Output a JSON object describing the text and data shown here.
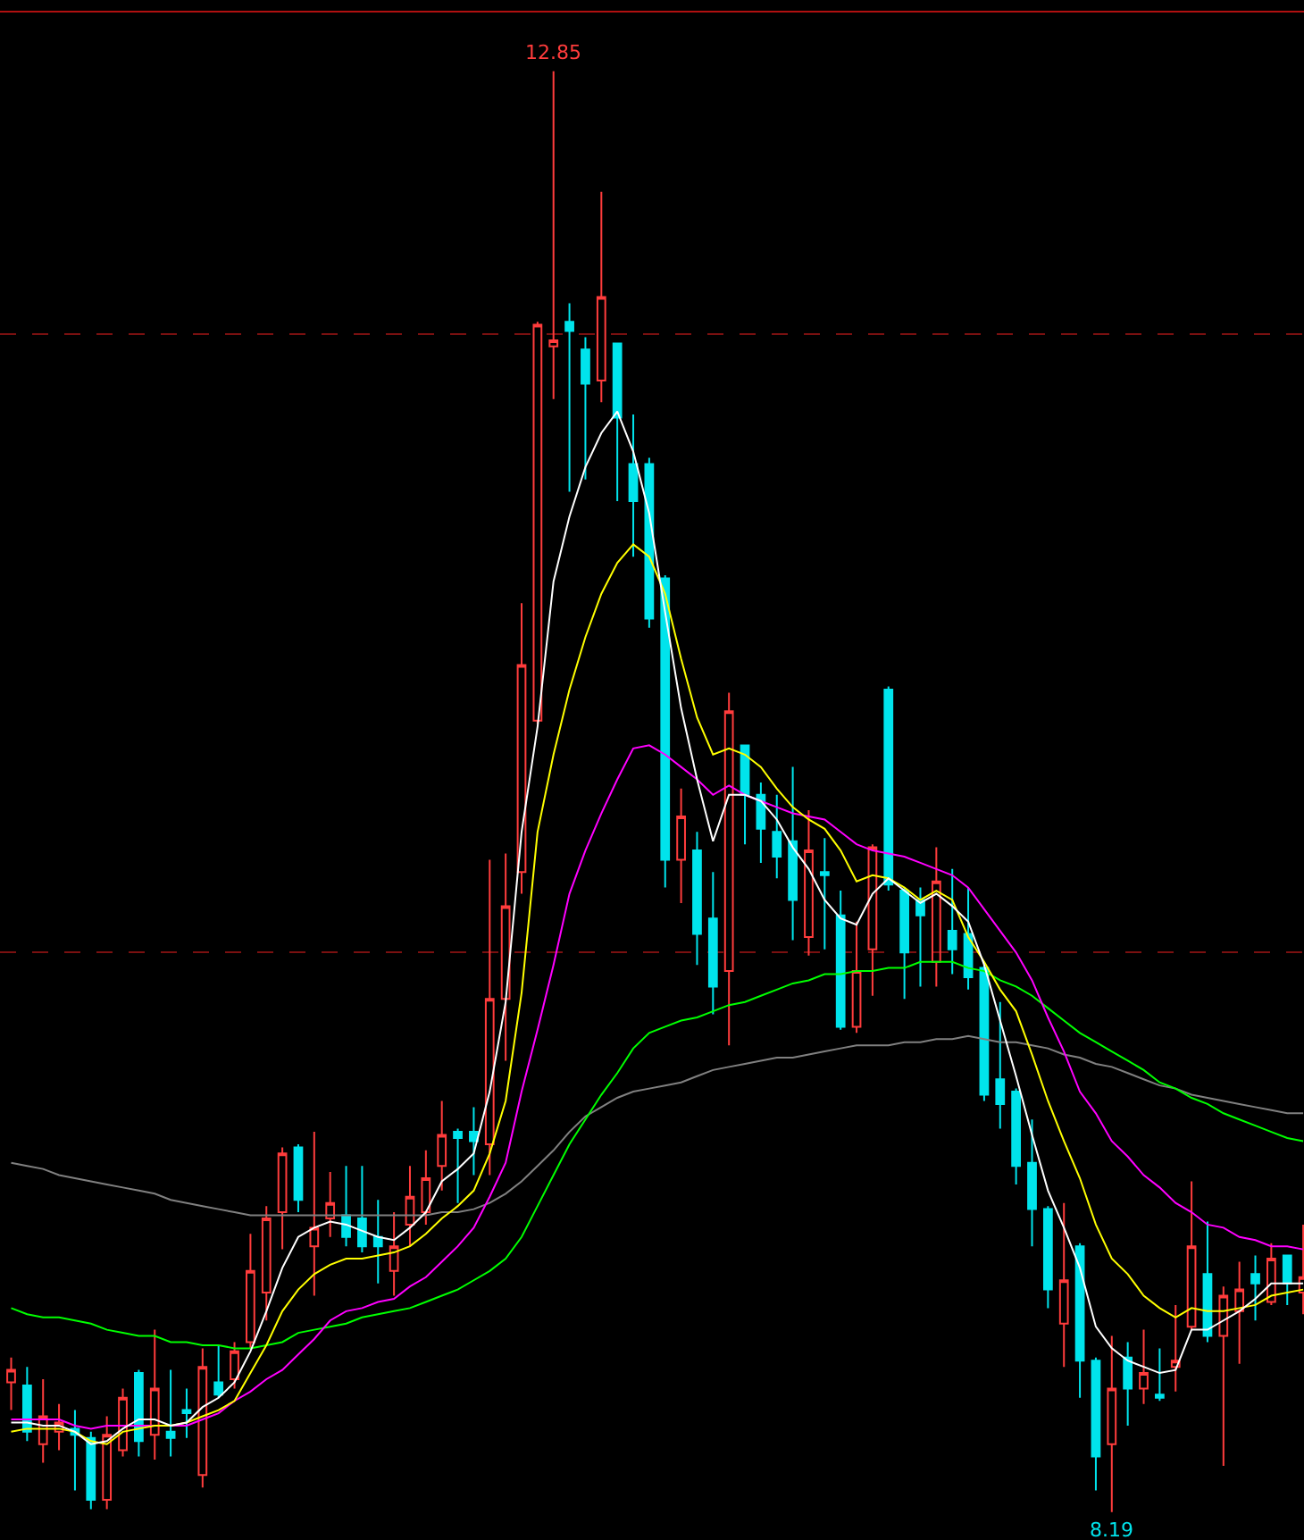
{
  "chart_data": {
    "type": "candlestick",
    "categories": [
      null,
      null,
      null,
      null,
      null,
      null,
      null,
      null,
      null,
      null,
      null,
      null,
      null,
      null,
      null,
      null,
      null,
      null,
      null,
      null,
      null,
      null,
      null,
      null,
      null,
      null,
      null,
      null,
      null,
      null,
      null,
      null,
      null,
      null,
      null,
      null,
      null,
      null,
      null,
      null,
      null,
      null,
      null,
      null,
      null,
      null,
      null,
      null,
      null,
      null,
      null,
      null,
      null,
      null,
      null,
      null,
      null,
      null,
      null,
      null,
      null,
      null,
      null,
      null,
      null,
      null,
      null,
      null,
      null,
      null,
      null,
      null,
      null,
      null,
      null,
      null,
      null,
      null,
      null,
      null,
      null,
      null
    ],
    "ohlc": [
      [
        8.61,
        8.69,
        8.52,
        8.65
      ],
      [
        8.6,
        8.66,
        8.42,
        8.45
      ],
      [
        8.41,
        8.62,
        8.35,
        8.5
      ],
      [
        8.45,
        8.54,
        8.39,
        8.48
      ],
      [
        8.46,
        8.52,
        8.26,
        8.44
      ],
      [
        8.43,
        8.45,
        8.2,
        8.23
      ],
      [
        8.23,
        8.5,
        8.2,
        8.44
      ],
      [
        8.39,
        8.59,
        8.37,
        8.56
      ],
      [
        8.64,
        8.65,
        8.37,
        8.42
      ],
      [
        8.44,
        8.78,
        8.36,
        8.59
      ],
      [
        8.45,
        8.65,
        8.37,
        8.43
      ],
      [
        8.52,
        8.59,
        8.43,
        8.51
      ],
      [
        8.31,
        8.72,
        8.27,
        8.66
      ],
      [
        8.61,
        8.73,
        8.56,
        8.57
      ],
      [
        8.62,
        8.74,
        8.59,
        8.71
      ],
      [
        8.74,
        9.09,
        8.72,
        8.97
      ],
      [
        8.9,
        9.18,
        8.81,
        9.14
      ],
      [
        9.16,
        9.37,
        9.04,
        9.35
      ],
      [
        9.37,
        9.38,
        9.16,
        9.2
      ],
      [
        9.05,
        9.42,
        8.89,
        9.11
      ],
      [
        9.14,
        9.29,
        9.08,
        9.19
      ],
      [
        9.15,
        9.31,
        9.05,
        9.08
      ],
      [
        9.14,
        9.31,
        9.03,
        9.05
      ],
      [
        9.08,
        9.2,
        8.93,
        9.05
      ],
      [
        8.97,
        9.16,
        8.89,
        9.05
      ],
      [
        9.12,
        9.31,
        9.05,
        9.21
      ],
      [
        9.16,
        9.36,
        9.12,
        9.27
      ],
      [
        9.31,
        9.52,
        9.23,
        9.41
      ],
      [
        9.42,
        9.43,
        9.19,
        9.4
      ],
      [
        9.42,
        9.5,
        9.28,
        9.39
      ],
      [
        9.38,
        10.3,
        9.28,
        9.85
      ],
      [
        9.85,
        10.32,
        9.65,
        10.15
      ],
      [
        10.26,
        11.13,
        10.19,
        10.93
      ],
      [
        10.75,
        12.04,
        10.74,
        12.03
      ],
      [
        11.96,
        12.85,
        11.79,
        11.98
      ],
      [
        12.04,
        12.1,
        11.49,
        12.01
      ],
      [
        11.95,
        11.99,
        11.53,
        11.84
      ],
      [
        11.85,
        12.46,
        11.78,
        12.12
      ],
      [
        11.97,
        11.97,
        11.46,
        11.73
      ],
      [
        11.58,
        11.74,
        11.28,
        11.46
      ],
      [
        11.58,
        11.6,
        11.05,
        11.08
      ],
      [
        11.21,
        11.22,
        10.21,
        10.3
      ],
      [
        10.3,
        10.53,
        10.16,
        10.44
      ],
      [
        10.33,
        10.39,
        9.96,
        10.06
      ],
      [
        10.11,
        10.26,
        9.8,
        9.89
      ],
      [
        9.94,
        10.84,
        9.7,
        10.78
      ],
      [
        10.67,
        10.67,
        10.35,
        10.51
      ],
      [
        10.51,
        10.55,
        10.29,
        10.4
      ],
      [
        10.39,
        10.51,
        10.24,
        10.31
      ],
      [
        10.36,
        10.6,
        10.04,
        10.17
      ],
      [
        10.05,
        10.46,
        9.99,
        10.33
      ],
      [
        10.26,
        10.37,
        10.01,
        10.25
      ],
      [
        10.12,
        10.2,
        9.75,
        9.76
      ],
      [
        9.76,
        10.1,
        9.74,
        9.94
      ],
      [
        10.01,
        10.35,
        9.86,
        10.34
      ],
      [
        10.85,
        10.86,
        10.2,
        10.22
      ],
      [
        10.2,
        10.21,
        9.85,
        10.0
      ],
      [
        10.17,
        10.21,
        9.89,
        10.12
      ],
      [
        9.97,
        10.34,
        9.89,
        10.23
      ],
      [
        10.07,
        10.27,
        9.93,
        10.01
      ],
      [
        10.06,
        10.21,
        9.88,
        9.92
      ],
      [
        9.95,
        9.96,
        9.52,
        9.54
      ],
      [
        9.59,
        9.84,
        9.43,
        9.51
      ],
      [
        9.55,
        9.56,
        9.25,
        9.31
      ],
      [
        9.32,
        9.46,
        9.05,
        9.17
      ],
      [
        9.17,
        9.18,
        8.85,
        8.91
      ],
      [
        8.8,
        9.19,
        8.66,
        8.94
      ],
      [
        9.05,
        9.06,
        8.56,
        8.68
      ],
      [
        8.68,
        8.69,
        8.26,
        8.37
      ],
      [
        8.41,
        8.76,
        8.19,
        8.59
      ],
      [
        8.69,
        8.74,
        8.47,
        8.59
      ],
      [
        8.59,
        8.78,
        8.54,
        8.64
      ],
      [
        8.57,
        8.72,
        8.55,
        8.56
      ],
      [
        8.66,
        8.86,
        8.58,
        8.68
      ],
      [
        8.79,
        9.26,
        8.78,
        9.05
      ],
      [
        8.96,
        9.13,
        8.74,
        8.76
      ],
      [
        8.76,
        8.92,
        8.34,
        8.89
      ],
      [
        8.84,
        9.0,
        8.67,
        8.91
      ],
      [
        8.96,
        9.02,
        8.81,
        8.93
      ],
      [
        8.87,
        9.06,
        8.86,
        9.01
      ],
      [
        9.02,
        9.02,
        8.86,
        8.93
      ],
      [
        8.9,
        9.12,
        8.83,
        8.95
      ]
    ],
    "colors": [
      "#ff3c3c",
      "#00e4ec",
      "#ff3c3c",
      "#ff3c3c",
      "#00e4ec",
      "#00e4ec",
      "#ff3c3c",
      "#ff3c3c",
      "#00e4ec",
      "#ff3c3c",
      "#00e4ec",
      "#00e4ec",
      "#ff3c3c",
      "#00e4ec",
      "#ff3c3c",
      "#ff3c3c",
      "#ff3c3c",
      "#ff3c3c",
      "#00e4ec",
      "#ff3c3c",
      "#ff3c3c",
      "#00e4ec",
      "#00e4ec",
      "#00e4ec",
      "#ff3c3c",
      "#ff3c3c",
      "#ff3c3c",
      "#ff3c3c",
      "#00e4ec",
      "#00e4ec",
      "#ff3c3c",
      "#ff3c3c",
      "#ff3c3c",
      "#ff3c3c",
      "#ff3c3c",
      "#00e4ec",
      "#00e4ec",
      "#ff3c3c",
      "#00e4ec",
      "#00e4ec",
      "#00e4ec",
      "#00e4ec",
      "#ff3c3c",
      "#00e4ec",
      "#00e4ec",
      "#ff3c3c",
      "#00e4ec",
      "#00e4ec",
      "#00e4ec",
      "#00e4ec",
      "#ff3c3c",
      "#00e4ec",
      "#00e4ec",
      "#ff3c3c",
      "#ff3c3c",
      "#00e4ec",
      "#00e4ec",
      "#00e4ec",
      "#ff3c3c",
      "#00e4ec",
      "#00e4ec",
      "#00e4ec",
      "#00e4ec",
      "#00e4ec",
      "#00e4ec",
      "#00e4ec",
      "#ff3c3c",
      "#00e4ec",
      "#00e4ec",
      "#ff3c3c",
      "#00e4ec",
      "#ff3c3c",
      "#00e4ec",
      "#ff3c3c",
      "#ff3c3c",
      "#00e4ec",
      "#ff3c3c",
      "#ff3c3c",
      "#00e4ec",
      "#ff3c3c",
      "#00e4ec",
      "#ff3c3c"
    ],
    "series": [
      {
        "type": "line",
        "color": "#808080",
        "values": [
          9.32,
          9.31,
          9.3,
          9.28,
          9.27,
          9.26,
          9.25,
          9.24,
          9.23,
          9.22,
          9.2,
          9.19,
          9.18,
          9.17,
          9.16,
          9.15,
          9.15,
          9.15,
          9.15,
          9.15,
          9.15,
          9.15,
          9.15,
          9.15,
          9.15,
          9.15,
          9.15,
          9.16,
          9.16,
          9.17,
          9.19,
          9.22,
          9.26,
          9.31,
          9.36,
          9.42,
          9.47,
          9.5,
          9.53,
          9.55,
          9.56,
          9.57,
          9.58,
          9.6,
          9.62,
          9.63,
          9.64,
          9.65,
          9.66,
          9.66,
          9.67,
          9.68,
          9.69,
          9.7,
          9.7,
          9.7,
          9.71,
          9.71,
          9.72,
          9.72,
          9.73,
          9.72,
          9.71,
          9.71,
          9.7,
          9.69,
          9.67,
          9.66,
          9.64,
          9.63,
          9.61,
          9.59,
          9.57,
          9.56,
          9.54,
          9.53,
          9.52,
          9.51,
          9.5,
          9.49,
          9.48,
          9.48
        ]
      },
      {
        "type": "line",
        "color": "#00ff00",
        "values": [
          8.85,
          8.83,
          8.82,
          8.82,
          8.81,
          8.8,
          8.78,
          8.77,
          8.76,
          8.76,
          8.74,
          8.74,
          8.73,
          8.73,
          8.72,
          8.72,
          8.73,
          8.74,
          8.77,
          8.78,
          8.79,
          8.8,
          8.82,
          8.83,
          8.84,
          8.85,
          8.87,
          8.89,
          8.91,
          8.94,
          8.97,
          9.01,
          9.08,
          9.18,
          9.28,
          9.38,
          9.46,
          9.54,
          9.61,
          9.69,
          9.74,
          9.76,
          9.78,
          9.79,
          9.81,
          9.83,
          9.84,
          9.86,
          9.88,
          9.9,
          9.91,
          9.93,
          9.93,
          9.94,
          9.94,
          9.95,
          9.95,
          9.97,
          9.97,
          9.97,
          9.95,
          9.94,
          9.91,
          9.89,
          9.86,
          9.82,
          9.78,
          9.74,
          9.71,
          9.68,
          9.65,
          9.62,
          9.58,
          9.56,
          9.53,
          9.51,
          9.48,
          9.46,
          9.44,
          9.42,
          9.4,
          9.39
        ]
      },
      {
        "type": "line",
        "color": "#ff00ff",
        "values": [
          8.49,
          8.49,
          8.49,
          8.49,
          8.47,
          8.46,
          8.47,
          8.47,
          8.47,
          8.47,
          8.47,
          8.47,
          8.49,
          8.51,
          8.55,
          8.58,
          8.62,
          8.65,
          8.7,
          8.75,
          8.81,
          8.84,
          8.85,
          8.87,
          8.88,
          8.92,
          8.95,
          9.0,
          9.05,
          9.11,
          9.21,
          9.32,
          9.55,
          9.75,
          9.96,
          10.19,
          10.33,
          10.45,
          10.56,
          10.66,
          10.67,
          10.64,
          10.6,
          10.56,
          10.51,
          10.54,
          10.51,
          10.49,
          10.47,
          10.45,
          10.44,
          10.43,
          10.39,
          10.35,
          10.33,
          10.32,
          10.31,
          10.29,
          10.27,
          10.25,
          10.21,
          10.14,
          10.07,
          10.0,
          9.91,
          9.79,
          9.68,
          9.55,
          9.48,
          9.39,
          9.34,
          9.28,
          9.24,
          9.19,
          9.16,
          9.12,
          9.11,
          9.08,
          9.07,
          9.05,
          9.05,
          9.04
        ]
      },
      {
        "type": "line",
        "color": "#ffff00",
        "values": [
          8.45,
          8.46,
          8.46,
          8.46,
          8.45,
          8.42,
          8.41,
          8.45,
          8.46,
          8.47,
          8.47,
          8.48,
          8.5,
          8.52,
          8.55,
          8.64,
          8.73,
          8.84,
          8.91,
          8.96,
          8.99,
          9.01,
          9.01,
          9.02,
          9.03,
          9.05,
          9.09,
          9.14,
          9.18,
          9.23,
          9.35,
          9.52,
          9.87,
          10.39,
          10.64,
          10.85,
          11.02,
          11.16,
          11.26,
          11.32,
          11.28,
          11.16,
          10.95,
          10.76,
          10.64,
          10.66,
          10.64,
          10.6,
          10.53,
          10.47,
          10.43,
          10.4,
          10.33,
          10.23,
          10.25,
          10.24,
          10.21,
          10.17,
          10.2,
          10.17,
          10.05,
          9.97,
          9.88,
          9.81,
          9.67,
          9.52,
          9.39,
          9.27,
          9.12,
          9.01,
          8.96,
          8.89,
          8.85,
          8.82,
          8.85,
          8.84,
          8.84,
          8.85,
          8.86,
          8.89,
          8.9,
          8.91
        ]
      },
      {
        "type": "line",
        "color": "#ffffff",
        "values": [
          8.48,
          8.48,
          8.47,
          8.47,
          8.45,
          8.41,
          8.42,
          8.46,
          8.49,
          8.49,
          8.47,
          8.48,
          8.53,
          8.56,
          8.61,
          8.71,
          8.84,
          8.98,
          9.08,
          9.11,
          9.13,
          9.12,
          9.1,
          9.08,
          9.07,
          9.11,
          9.16,
          9.26,
          9.3,
          9.35,
          9.55,
          9.84,
          10.39,
          10.73,
          11.2,
          11.41,
          11.57,
          11.68,
          11.75,
          11.62,
          11.42,
          11.1,
          10.79,
          10.56,
          10.36,
          10.51,
          10.51,
          10.49,
          10.43,
          10.34,
          10.27,
          10.17,
          10.11,
          10.09,
          10.19,
          10.24,
          10.2,
          10.16,
          10.19,
          10.15,
          10.1,
          9.96,
          9.78,
          9.6,
          9.41,
          9.23,
          9.11,
          8.98,
          8.79,
          8.72,
          8.68,
          8.66,
          8.64,
          8.65,
          8.78,
          8.78,
          8.81,
          8.84,
          8.88,
          8.93,
          8.93,
          8.93
        ]
      }
    ],
    "annotations": [
      {
        "text": "12.85",
        "y": 12.85
      },
      {
        "text": "8.19",
        "y": 8.19
      }
    ],
    "ylim": [
      8.1,
      13.04
    ],
    "yticks": [
      {
        "value": 12,
        "label": null
      },
      {
        "value": 10,
        "label": null
      }
    ],
    "grid": "y",
    "marker": "none",
    "line_style": "solid"
  }
}
